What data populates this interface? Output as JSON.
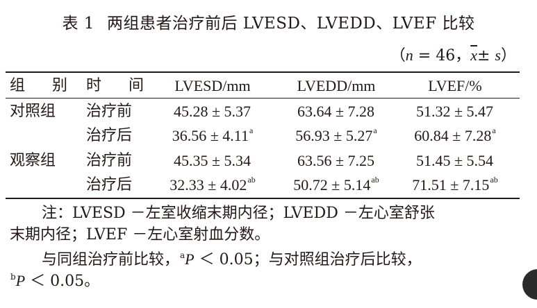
{
  "table": {
    "number": "表 1",
    "title": "两组患者治疗前后 LVESD、LVEDD、LVEF 比较",
    "subtitle_open": "（",
    "n_label": "n",
    "n_value": " = 46，",
    "xbar": "x",
    "plusminus": "± ",
    "s_label": "s",
    "subtitle_close": "）",
    "headers": {
      "group": "组 别",
      "time": "时 间",
      "lvesd": "LVESD/mm",
      "lvedd": "LVEDD/mm",
      "lvef": "LVEF/%"
    },
    "rows": [
      {
        "group": "对照组",
        "time": "治疗前",
        "lvesd": "45.28 ± 5.37",
        "lvesd_sup": "",
        "lvedd": "63.64 ± 7.28",
        "lvedd_sup": "",
        "lvef": "51.32 ± 5.47",
        "lvef_sup": ""
      },
      {
        "group": "",
        "time": "治疗后",
        "lvesd": "36.56 ± 4.11",
        "lvesd_sup": "a",
        "lvedd": "56.93 ± 5.27",
        "lvedd_sup": "a",
        "lvef": "60.84 ± 7.28",
        "lvef_sup": "a"
      },
      {
        "group": "观察组",
        "time": "治疗前",
        "lvesd": "45.35 ± 5.34",
        "lvesd_sup": "",
        "lvedd": "63.56 ± 7.25",
        "lvedd_sup": "",
        "lvef": "51.45 ± 5.54",
        "lvef_sup": ""
      },
      {
        "group": "",
        "time": "治疗后",
        "lvesd": "32.33 ± 4.02",
        "lvesd_sup": "ab",
        "lvedd": "50.72 ± 5.14",
        "lvedd_sup": "ab",
        "lvef": "71.51 ± 7.15",
        "lvef_sup": "ab"
      }
    ]
  },
  "notes": {
    "line1": "注：LVESD －左室收缩末期内径；LVEDD －左心室舒张",
    "line2": "末期内径；LVEF －左心室射血分数。",
    "line3_a": "与同组治疗前比较，",
    "line3_sup": "a",
    "line3_p": "P",
    "line3_b": " ＜ 0.05；与对照组治疗后比较，",
    "line4_sup": "b",
    "line4_p": "P",
    "line4_b": " ＜ 0.05。"
  }
}
